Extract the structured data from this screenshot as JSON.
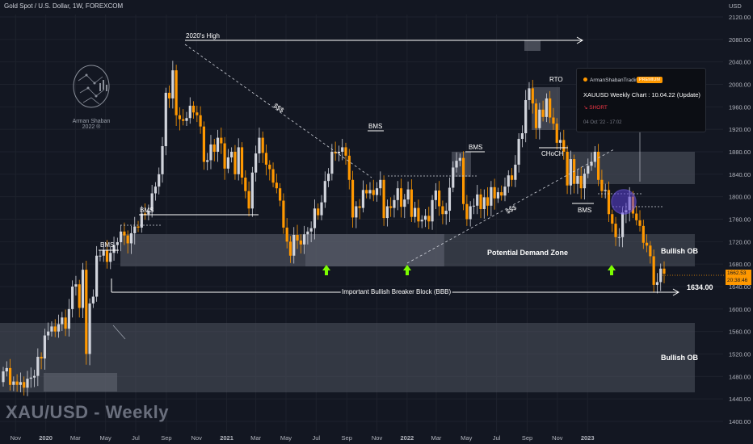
{
  "header": {
    "title": "Gold Spot / U.S. Dollar, 1W, FOREXCOM",
    "watermark": "XAU/USD - Weekly",
    "currency": "USD"
  },
  "logo": {
    "line1": "Arman Shaban",
    "line2": "2022 ®"
  },
  "popup": {
    "author": "ArmanShabanTrading",
    "badge": "PREMIUM",
    "title": "XAUUSD Weekly Chart : 10.04.22 (Update)",
    "signal": "↘ SHORT",
    "date": "04 Oct '22 - 17:02"
  },
  "price_tag": {
    "price": "1662.53",
    "countdown": "20:38:46"
  },
  "colors": {
    "background": "#131722",
    "bull_candle": "#d1d4dc",
    "bear_candle": "#ff9800",
    "zone": "#4a4e5a",
    "arrow_green": "#7cfc00",
    "circle": "#7b61ff"
  },
  "annotations": {
    "high_2020": "2020's High",
    "bms": "BMS",
    "ssl": "$$$",
    "rto": "RTO",
    "choch": "CHoCH",
    "demand_zone": "Potential Demand Zone",
    "bullish_ob": "Bullish OB",
    "bbb": "Important Bullish Breaker Block (BBB)",
    "level_1634": "1634.00"
  },
  "chart_data": {
    "type": "candlestick",
    "title": "Gold Spot / U.S. Dollar, 1W, FOREXCOM",
    "ylim": [
      1380,
      2160
    ],
    "y_ticks": [
      "2120.00",
      "2080.00",
      "2040.00",
      "2000.00",
      "1960.00",
      "1920.00",
      "1880.00",
      "1840.00",
      "1800.00",
      "1760.00",
      "1720.00",
      "1680.00",
      "1640.00",
      "1600.00",
      "1560.00",
      "1520.00",
      "1480.00",
      "1440.00",
      "1400.00"
    ],
    "x_ticks": [
      "Nov",
      "2020",
      "Mar",
      "May",
      "Jul",
      "Sep",
      "Nov",
      "2021",
      "Mar",
      "May",
      "Jul",
      "Sep",
      "Nov",
      "2022",
      "Mar",
      "May",
      "Jul",
      "Sep",
      "Nov",
      "2023"
    ],
    "x_start": "2019-10-07",
    "x_end": "2023-01-09",
    "closes": [
      1489,
      1495,
      1465,
      1471,
      1465,
      1470,
      1460,
      1476,
      1478,
      1481,
      1515,
      1512,
      1553,
      1560,
      1569,
      1560,
      1573,
      1585,
      1565,
      1600,
      1640,
      1644,
      1602,
      1670,
      1520,
      1610,
      1622,
      1695,
      1695,
      1705,
      1684,
      1700,
      1714,
      1719,
      1738,
      1731,
      1717,
      1735,
      1747,
      1745,
      1770,
      1769,
      1775,
      1806,
      1818,
      1840,
      1890,
      1985,
      1975,
      2025,
      1945,
      1938,
      1935,
      1940,
      1962,
      1950,
      1945,
      1925,
      1862,
      1865,
      1893,
      1880,
      1905,
      1895,
      1850,
      1870,
      1880,
      1840,
      1888,
      1834,
      1810,
      1779,
      1843,
      1877,
      1905,
      1878,
      1857,
      1849,
      1825,
      1815,
      1793,
      1745,
      1720,
      1695,
      1732,
      1722,
      1715,
      1733,
      1738,
      1744,
      1779,
      1767,
      1790,
      1828,
      1841,
      1880,
      1877,
      1880,
      1888,
      1873,
      1830,
      1763,
      1783,
      1780,
      1812,
      1806,
      1812,
      1803,
      1815,
      1830,
      1762,
      1783,
      1780,
      1794,
      1815,
      1782,
      1795,
      1813,
      1764,
      1780,
      1756,
      1759,
      1766,
      1756,
      1794,
      1811,
      1783,
      1769,
      1775,
      1816,
      1852,
      1864,
      1869,
      1787,
      1760,
      1783,
      1784,
      1804,
      1778,
      1799,
      1784,
      1817,
      1797,
      1808,
      1802,
      1818,
      1838,
      1830,
      1857,
      1903,
      1913,
      1972,
      1993,
      1966,
      1922,
      1955,
      1942,
      1975,
      1941,
      1930,
      1896,
      1901,
      1880,
      1820,
      1867,
      1823,
      1837,
      1815,
      1841,
      1855,
      1862,
      1880,
      1830,
      1810,
      1812,
      1769,
      1752,
      1728,
      1728,
      1772,
      1776,
      1800,
      1770,
      1758,
      1748,
      1718,
      1713,
      1694,
      1643,
      1648,
      1672,
      1663
    ]
  }
}
